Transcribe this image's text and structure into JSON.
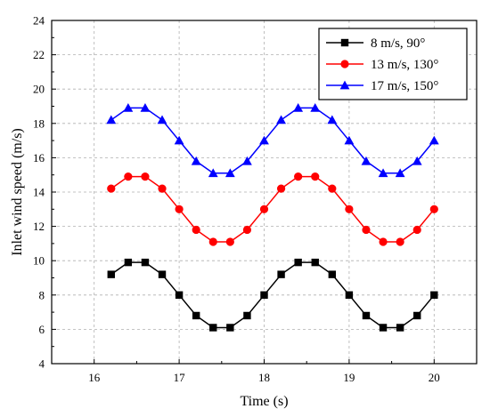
{
  "chart_data": {
    "type": "line",
    "title": "",
    "xlabel": "Time (s)",
    "ylabel": "Inlet wind speed (m/s)",
    "xlim": [
      15.5,
      20.5
    ],
    "ylim": [
      4,
      24
    ],
    "xticks": [
      16,
      17,
      18,
      19,
      20
    ],
    "yticks": [
      4,
      6,
      8,
      10,
      12,
      14,
      16,
      18,
      20,
      22,
      24
    ],
    "grid": true,
    "legend_position": "top-right",
    "x": [
      16.2,
      16.4,
      16.6,
      16.8,
      17.0,
      17.2,
      17.4,
      17.6,
      17.8,
      18.0,
      18.2,
      18.4,
      18.6,
      18.8,
      19.0,
      19.2,
      19.4,
      19.6,
      19.8,
      20.0
    ],
    "series": [
      {
        "name": "8 m/s, 90°",
        "color": "#000000",
        "marker": "square",
        "values": [
          9.2,
          9.9,
          9.9,
          9.2,
          8.0,
          6.8,
          6.1,
          6.1,
          6.8,
          8.0,
          9.2,
          9.9,
          9.9,
          9.2,
          8.0,
          6.8,
          6.1,
          6.1,
          6.8,
          8.0
        ]
      },
      {
        "name": "13 m/s, 130°",
        "color": "#ff0000",
        "marker": "circle",
        "values": [
          14.2,
          14.9,
          14.9,
          14.2,
          13.0,
          11.8,
          11.1,
          11.1,
          11.8,
          13.0,
          14.2,
          14.9,
          14.9,
          14.2,
          13.0,
          11.8,
          11.1,
          11.1,
          11.8,
          13.0
        ]
      },
      {
        "name": "17 m/s, 150°",
        "color": "#0000ff",
        "marker": "triangle",
        "values": [
          18.2,
          18.9,
          18.9,
          18.2,
          17.0,
          15.8,
          15.1,
          15.1,
          15.8,
          17.0,
          18.2,
          18.9,
          18.9,
          18.2,
          17.0,
          15.8,
          15.1,
          15.1,
          15.8,
          17.0
        ]
      }
    ]
  }
}
